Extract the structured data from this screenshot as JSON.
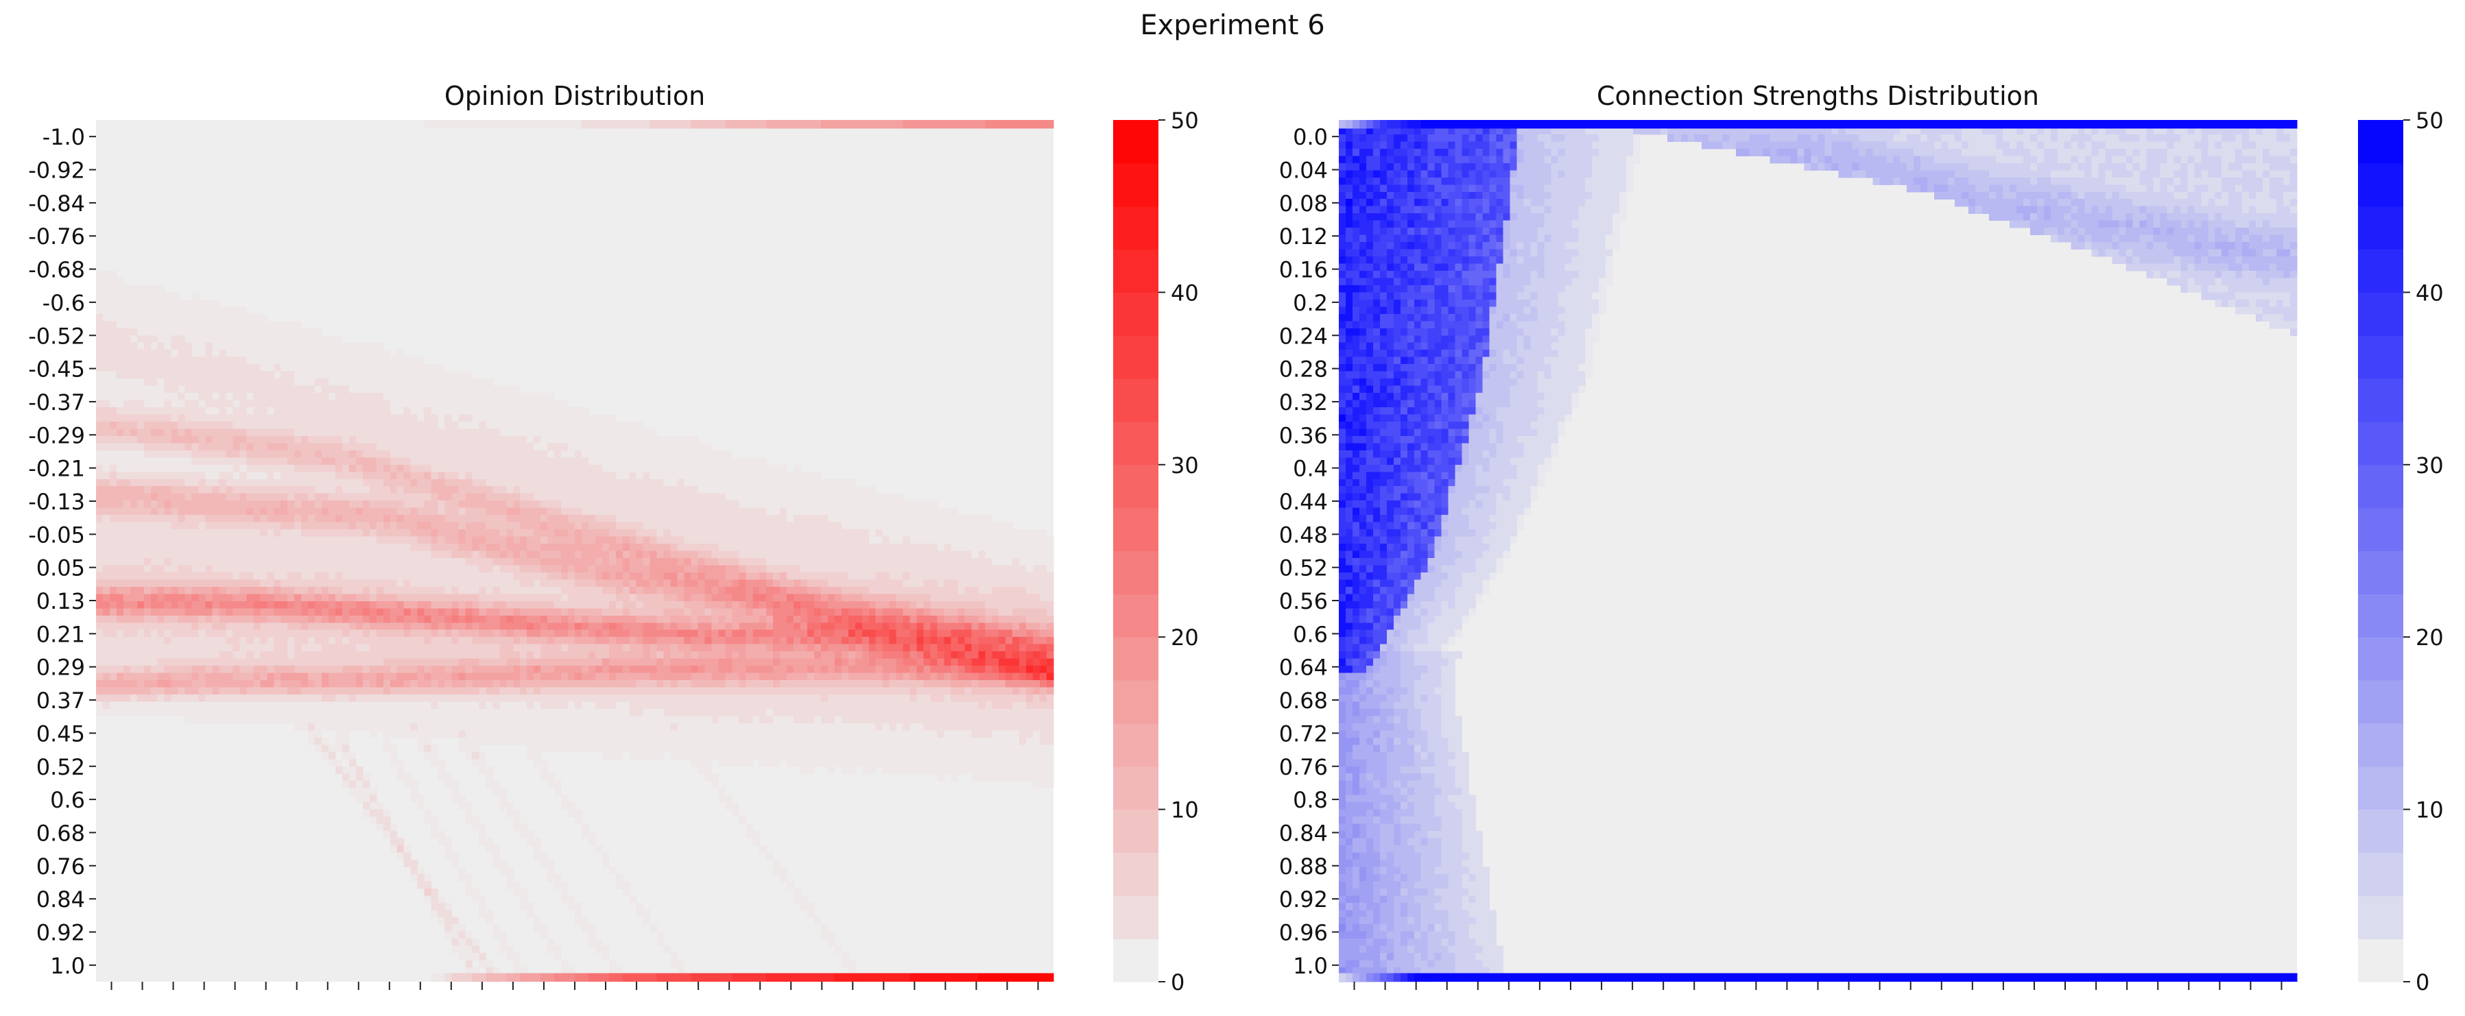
{
  "suptitle": "Experiment 6",
  "chart_data": [
    {
      "type": "heatmap",
      "title": "Opinion Distribution",
      "xlabel": "",
      "ylabel": "",
      "y_tick_labels": [
        "-1.0",
        "-0.92",
        "-0.84",
        "-0.76",
        "-0.68",
        "-0.6",
        "-0.52",
        "-0.45",
        "-0.37",
        "-0.29",
        "-0.21",
        "-0.13",
        "-0.05",
        "0.05",
        "0.13",
        "0.21",
        "0.29",
        "0.37",
        "0.45",
        "0.52",
        "0.6",
        "0.68",
        "0.76",
        "0.84",
        "0.92",
        "1.0"
      ],
      "y_range": [
        -1.0,
        1.0
      ],
      "x_tick_count": 31,
      "x_tick_labels_shown": false,
      "colorbar": {
        "min": 0,
        "max": 50,
        "ticks": [
          "0",
          "10",
          "20",
          "30",
          "40",
          "50"
        ],
        "low_color": "#eeeeee",
        "high_color": "#ff0000"
      },
      "grid": false,
      "features": {
        "edge_bands": [
          {
            "edge": "top",
            "value_curve": [
              [
                0.0,
                0
              ],
              [
                0.3,
                0
              ],
              [
                0.55,
                3
              ],
              [
                0.72,
                14
              ],
              [
                1.0,
                22
              ]
            ]
          },
          {
            "edge": "bottom",
            "value_curve": [
              [
                0.0,
                0
              ],
              [
                0.35,
                0
              ],
              [
                0.38,
                6
              ],
              [
                0.55,
                30
              ],
              [
                0.7,
                40
              ],
              [
                1.0,
                50
              ]
            ]
          }
        ],
        "density_bands": [
          {
            "y_curve": [
              [
                0,
                -0.48
              ],
              [
                0.3,
                -0.3
              ],
              [
                0.6,
                -0.1
              ],
              [
                1,
                0.15
              ]
            ],
            "value": 3,
            "sigma": 0.09
          },
          {
            "y_curve": [
              [
                0,
                -0.29
              ],
              [
                0.25,
                -0.22
              ],
              [
                0.5,
                -0.05
              ],
              [
                0.75,
                0.12
              ],
              [
                1,
                0.22
              ]
            ],
            "value": 9,
            "sigma": 0.03
          },
          {
            "y_curve": [
              [
                0,
                -0.13
              ],
              [
                0.3,
                -0.08
              ],
              [
                0.6,
                0.08
              ],
              [
                0.8,
                0.17
              ],
              [
                1,
                0.24
              ]
            ],
            "value": 11,
            "sigma": 0.035
          },
          {
            "y_curve": [
              [
                0,
                0.12
              ],
              [
                0.15,
                0.12
              ],
              [
                0.4,
                0.16
              ],
              [
                0.65,
                0.2
              ],
              [
                0.8,
                0.2
              ],
              [
                1,
                0.28
              ]
            ],
            "value": 15,
            "sigma": 0.025
          },
          {
            "y_curve": [
              [
                0,
                0.31
              ],
              [
                0.15,
                0.3
              ],
              [
                0.3,
                0.3
              ],
              [
                0.55,
                0.28
              ],
              [
                0.8,
                0.27
              ],
              [
                1,
                0.29
              ]
            ],
            "value": 12,
            "sigma": 0.025
          },
          {
            "y_curve": [
              [
                0,
                0.1
              ],
              [
                0.5,
                0.2
              ],
              [
                0.7,
                0.23
              ],
              [
                0.9,
                0.26
              ],
              [
                1,
                0.28
              ]
            ],
            "value": 6,
            "sigma": 0.12
          },
          {
            "y_curve": [
              [
                0.25,
                -1.0
              ],
              [
                0.5,
                -1.0
              ],
              [
                1,
                -1.0
              ]
            ],
            "value": 0,
            "sigma": 0.01
          }
        ],
        "trails": [
          {
            "start": [
              0.22,
              0.4
            ],
            "end": [
              0.42,
              1.0
            ],
            "value": 3
          },
          {
            "start": [
              0.25,
              0.42
            ],
            "end": [
              0.4,
              1.0
            ],
            "value": 3
          },
          {
            "start": [
              0.3,
              0.44
            ],
            "end": [
              0.45,
              1.0
            ],
            "value": 2
          },
          {
            "start": [
              0.33,
              0.4
            ],
            "end": [
              0.5,
              1.0
            ],
            "value": 2
          },
          {
            "start": [
              0.38,
              0.42
            ],
            "end": [
              0.55,
              1.0
            ],
            "value": 2
          },
          {
            "start": [
              0.45,
              0.45
            ],
            "end": [
              0.62,
              1.0
            ],
            "value": 1
          },
          {
            "start": [
              0.6,
              0.4
            ],
            "end": [
              0.8,
              1.0
            ],
            "value": 1
          }
        ]
      }
    },
    {
      "type": "heatmap",
      "title": "Connection Strengths Distribution",
      "xlabel": "",
      "ylabel": "",
      "y_tick_labels": [
        "0.0",
        "0.04",
        "0.08",
        "0.12",
        "0.16",
        "0.2",
        "0.24",
        "0.28",
        "0.32",
        "0.36",
        "0.4",
        "0.44",
        "0.48",
        "0.52",
        "0.56",
        "0.6",
        "0.64",
        "0.68",
        "0.72",
        "0.76",
        "0.8",
        "0.84",
        "0.88",
        "0.92",
        "0.96",
        "1.0"
      ],
      "y_range": [
        0.0,
        1.0
      ],
      "x_tick_count": 31,
      "x_tick_labels_shown": false,
      "colorbar": {
        "min": 0,
        "max": 50,
        "ticks": [
          "0",
          "10",
          "20",
          "30",
          "40",
          "50"
        ],
        "low_color": "#eeeeee",
        "high_color": "#0000ff"
      },
      "grid": false,
      "features": {
        "edge_bands": [
          {
            "edge": "top",
            "value_curve": [
              [
                0.0,
                8
              ],
              [
                0.05,
                40
              ],
              [
                0.1,
                50
              ],
              [
                1.0,
                50
              ]
            ]
          },
          {
            "edge": "bottom",
            "value_curve": [
              [
                0.0,
                4
              ],
              [
                0.05,
                30
              ],
              [
                0.08,
                50
              ],
              [
                1.0,
                50
              ]
            ]
          }
        ],
        "dense_wedge": {
          "y_top": 0.0,
          "y_bottom": 0.64,
          "left_edge_value": 42,
          "right_boundary": [
            [
              0.0,
              0.19
            ],
            [
              0.3,
              0.15
            ],
            [
              0.5,
              0.1
            ],
            [
              0.64,
              0.03
            ]
          ],
          "outer_boundary": [
            [
              0.0,
              0.32
            ],
            [
              0.3,
              0.26
            ],
            [
              0.5,
              0.18
            ],
            [
              0.64,
              0.1
            ]
          ],
          "outer_value": 8
        },
        "fan_region": {
          "y_top": 0.64,
          "y_bottom": 1.0,
          "origin": [
            0.0,
            0.66
          ],
          "value_near": 18,
          "value_far": 3,
          "x_extent": 0.2
        },
        "upper_right_band": {
          "x_start": 0.3,
          "x_end": 1.0,
          "top_edge": [
            [
              0.3,
              0.0
            ],
            [
              1.0,
              0.0
            ]
          ],
          "bottom_edge": [
            [
              0.3,
              0.01
            ],
            [
              0.6,
              0.08
            ],
            [
              0.8,
              0.16
            ],
            [
              1.0,
              0.25
            ]
          ],
          "value": 5,
          "core_value": 9,
          "core_curve": [
            [
              0.5,
              0.04
            ],
            [
              0.7,
              0.1
            ],
            [
              0.9,
              0.14
            ],
            [
              1.0,
              0.16
            ]
          ]
        }
      }
    }
  ]
}
